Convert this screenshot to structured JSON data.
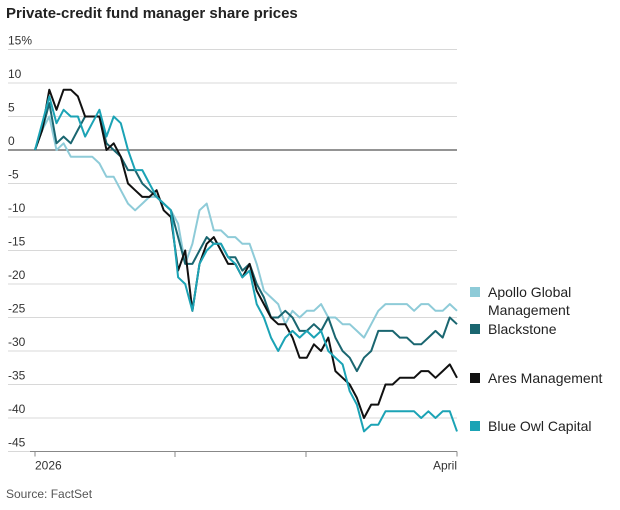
{
  "chart_data": {
    "type": "line",
    "title": "Private-credit fund manager share prices",
    "source": "Source: FactSet",
    "categories": [
      "2026",
      null,
      null,
      null,
      null,
      null,
      null,
      null,
      null,
      null,
      null,
      null,
      null,
      null,
      null,
      null,
      null,
      null,
      null,
      null,
      null,
      null,
      null,
      null,
      null,
      null,
      null,
      null,
      null,
      null,
      null,
      null,
      null,
      null,
      null,
      null,
      null,
      null,
      null,
      null,
      null,
      null,
      null,
      null,
      null,
      null,
      null,
      null,
      null,
      null,
      null,
      null,
      null,
      null,
      null,
      null,
      null,
      null,
      null,
      "April"
    ],
    "series": [
      {
        "name": "Apollo Global Management",
        "color": "#8ecbd8",
        "values": [
          0,
          3,
          5,
          0,
          1,
          -1,
          -1,
          -1,
          -1,
          -2,
          -4,
          -4,
          -6,
          -8,
          -9,
          -8,
          -7,
          -7,
          -8,
          -9,
          -11,
          -17,
          -14,
          -9,
          -8,
          -12,
          -12,
          -13,
          -13,
          -14,
          -14,
          -17,
          -21,
          -22,
          -23,
          -26,
          -24,
          -25,
          -24,
          -24,
          -23,
          -25,
          -25,
          -26,
          -26,
          -27,
          -28,
          -26,
          -24,
          -23,
          -23,
          -23,
          -23,
          -24,
          -23,
          -23,
          -24,
          -24,
          -23,
          -24
        ]
      },
      {
        "name": "Blackstone",
        "color": "#1a6670",
        "values": [
          0,
          3,
          7,
          1,
          2,
          1,
          3,
          5,
          5,
          5,
          1,
          0,
          -1,
          -3,
          -3,
          -5,
          -6,
          -7,
          -8,
          -9,
          -13,
          -17,
          -17,
          -15,
          -13,
          -14,
          -14,
          -16,
          -16,
          -18,
          -17,
          -20,
          -22,
          -25,
          -25,
          -24,
          -25,
          -27,
          -27,
          -26,
          -27,
          -25,
          -28,
          -30,
          -31,
          -33,
          -31,
          -30,
          -27,
          -27,
          -27,
          -28,
          -28,
          -29,
          -29,
          -28,
          -27,
          -28,
          -25,
          -26
        ]
      },
      {
        "name": "Ares Management",
        "color": "#111111",
        "values": [
          0,
          3,
          9,
          6,
          9,
          9,
          8,
          5,
          5,
          5,
          0,
          1,
          -1,
          -5,
          -6,
          -7,
          -7,
          -6,
          -9,
          -10,
          -18,
          -15,
          -24,
          -17,
          -14,
          -13,
          -15,
          -17,
          -17,
          -19,
          -17,
          -21,
          -23,
          -25,
          -26,
          -26,
          -28,
          -31,
          -31,
          -29,
          -30,
          -28,
          -33,
          -34,
          -35,
          -37,
          -40,
          -38,
          -38,
          -35,
          -35,
          -34,
          -34,
          -34,
          -33,
          -33,
          -34,
          -33,
          -32,
          -34
        ]
      },
      {
        "name": "Blue Owl Capital",
        "color": "#1ba3b5",
        "values": [
          0,
          4,
          8,
          4,
          6,
          5,
          5,
          2,
          4,
          6,
          2,
          5,
          4,
          0,
          -3,
          -3,
          -5,
          -7,
          -8,
          -9,
          -19,
          -20,
          -24,
          -17,
          -15,
          -14,
          -14,
          -16,
          -17,
          -19,
          -18,
          -23,
          -25,
          -28,
          -30,
          -28,
          -27,
          -28,
          -27,
          -28,
          -27,
          -30,
          -31,
          -32,
          -36,
          -38,
          -42,
          -41,
          -41,
          -39,
          -39,
          -39,
          -39,
          -39,
          -40,
          -39,
          -40,
          -39,
          -39,
          -42
        ]
      }
    ],
    "ylim": [
      -45,
      15
    ],
    "yticks": [
      {
        "value": 15,
        "label": "15%"
      },
      10,
      5,
      0,
      -5,
      -10,
      -15,
      -20,
      -25,
      -30,
      -35,
      -40,
      -45
    ],
    "grid": true
  }
}
